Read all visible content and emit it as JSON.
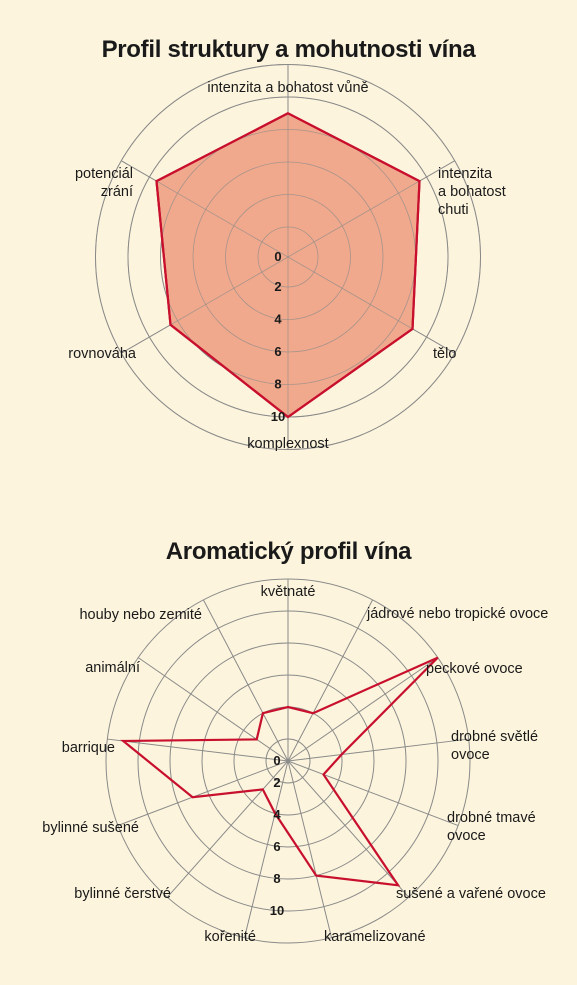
{
  "charts": [
    {
      "title": "Profil struktury a mohutnosti vína",
      "chart_data": {
        "type": "radar",
        "title": "Profil struktury a mohutnosti vína",
        "axes": [
          [
            "intenzita a bohatost vůně"
          ],
          [
            "intenzita",
            "a bohatost",
            "chuti"
          ],
          [
            "tělo"
          ],
          [
            "komplexnost"
          ],
          [
            "rovnováha"
          ],
          [
            "potenciál",
            "zrání"
          ]
        ],
        "ticks": [
          "0",
          "2",
          "4",
          "6",
          "8",
          "10"
        ],
        "range": [
          0,
          10
        ],
        "series": [
          {
            "values": [
              7,
              7.5,
              7,
              8,
              6.5,
              7.5
            ]
          }
        ],
        "fill_color": "#f0a98c",
        "line_color": "#c8102e"
      }
    },
    {
      "title": "Aromatický profil vína",
      "chart_data": {
        "type": "radar",
        "title": "Aromatický profil vína",
        "axes": [
          [
            "květnaté"
          ],
          [
            "jádrové nebo tropické ovoce"
          ],
          [
            "peckové ovoce"
          ],
          [
            "drobné světlé",
            "ovoce"
          ],
          [
            "drobné tmavé",
            "ovoce"
          ],
          [
            "sušené a vařené ovoce"
          ],
          [
            "karamelizované"
          ],
          [
            "kořenité"
          ],
          [
            "bylinné čerstvé"
          ],
          [
            "bylinné sušené"
          ],
          [
            "barrique"
          ],
          [
            "animální"
          ],
          [
            "houby nebo zemité"
          ]
        ],
        "ticks": [
          "0",
          "2",
          "4",
          "6",
          "8",
          "10"
        ],
        "range": [
          0,
          10
        ],
        "series": [
          {
            "values": [
              2,
              2,
              10,
              2,
              1,
              9,
              6,
              2,
              1,
              5,
              9,
              1,
              2
            ]
          }
        ],
        "fill_color": "none",
        "line_color": "#c8102e"
      }
    }
  ],
  "colors": {
    "background": "#fcf4dc",
    "grid": "#8a8a8a"
  }
}
